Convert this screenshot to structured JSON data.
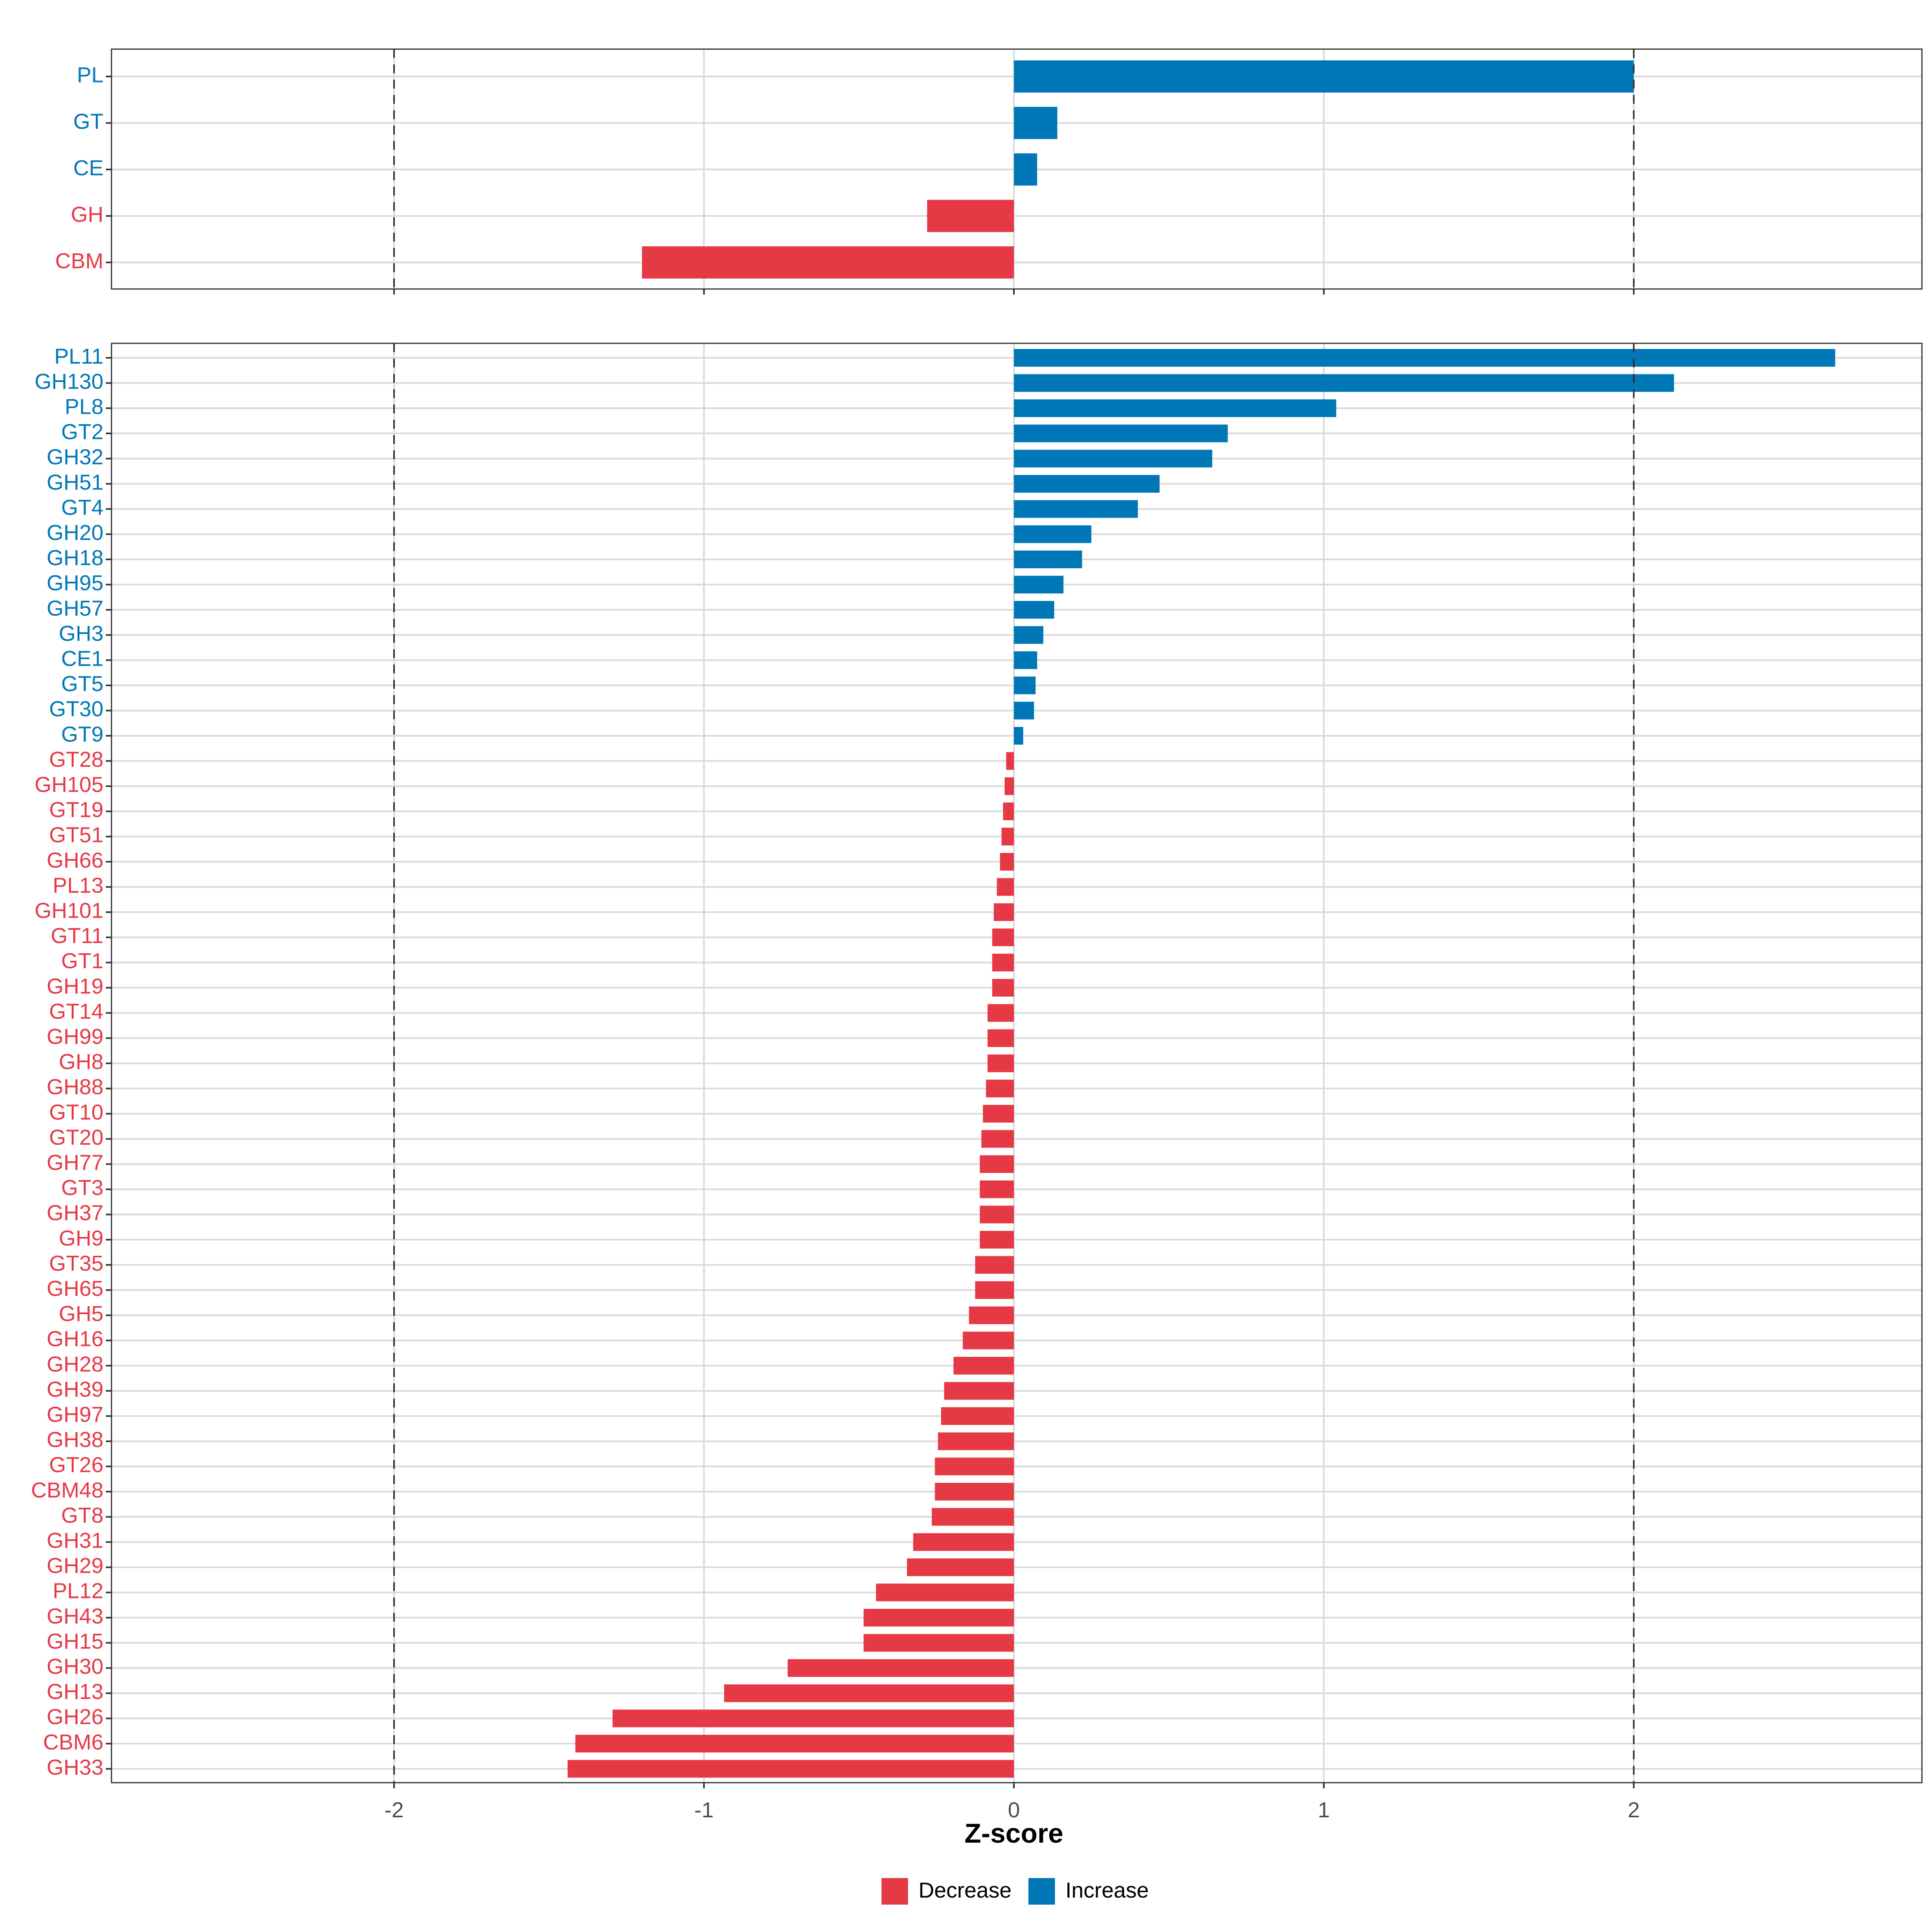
{
  "chart_data": {
    "type": "bar",
    "orientation": "horizontal",
    "xlabel": "Z-score",
    "xlim": [
      -2.9,
      2.9
    ],
    "x_ticks": [
      -2,
      -1,
      0,
      1,
      2
    ],
    "reference_lines": [
      -2,
      2
    ],
    "colors": {
      "Decrease": "#E63946",
      "Increase": "#0077B6"
    },
    "legend": {
      "position": "bottom",
      "entries": [
        "Decrease",
        "Increase"
      ]
    },
    "panels": [
      {
        "name": "class",
        "categories": [
          "PL",
          "GT",
          "CE",
          "GH",
          "CBM"
        ],
        "values": [
          2.0,
          0.14,
          0.075,
          -0.28,
          -1.2
        ]
      },
      {
        "name": "family",
        "categories": [
          "PL11",
          "GH130",
          "PL8",
          "GT2",
          "GH32",
          "GH51",
          "GT4",
          "GH20",
          "GH18",
          "GH95",
          "GH57",
          "GH3",
          "CE1",
          "GT5",
          "GT30",
          "GT9",
          "GT28",
          "GH105",
          "GT19",
          "GT51",
          "GH66",
          "PL13",
          "GH101",
          "GT11",
          "GT1",
          "GH19",
          "GT14",
          "GH99",
          "GH8",
          "GH88",
          "GT10",
          "GT20",
          "GH77",
          "GT3",
          "GH37",
          "GH9",
          "GT35",
          "GH65",
          "GH5",
          "GH16",
          "GH28",
          "GH39",
          "GH97",
          "GH38",
          "GT26",
          "CBM48",
          "GT8",
          "GH31",
          "GH29",
          "PL12",
          "GH43",
          "GH15",
          "GH30",
          "GH13",
          "GH26",
          "CBM6",
          "GH33"
        ],
        "values": [
          2.65,
          2.13,
          1.04,
          0.69,
          0.64,
          0.47,
          0.4,
          0.25,
          0.22,
          0.16,
          0.13,
          0.095,
          0.075,
          0.07,
          0.065,
          0.03,
          -0.025,
          -0.03,
          -0.035,
          -0.04,
          -0.045,
          -0.055,
          -0.065,
          -0.07,
          -0.07,
          -0.07,
          -0.085,
          -0.085,
          -0.085,
          -0.09,
          -0.1,
          -0.105,
          -0.11,
          -0.11,
          -0.11,
          -0.11,
          -0.125,
          -0.125,
          -0.145,
          -0.165,
          -0.195,
          -0.225,
          -0.235,
          -0.245,
          -0.255,
          -0.255,
          -0.265,
          -0.325,
          -0.345,
          -0.445,
          -0.485,
          -0.485,
          -0.73,
          -0.935,
          -1.295,
          -1.415,
          -1.44
        ]
      }
    ]
  }
}
